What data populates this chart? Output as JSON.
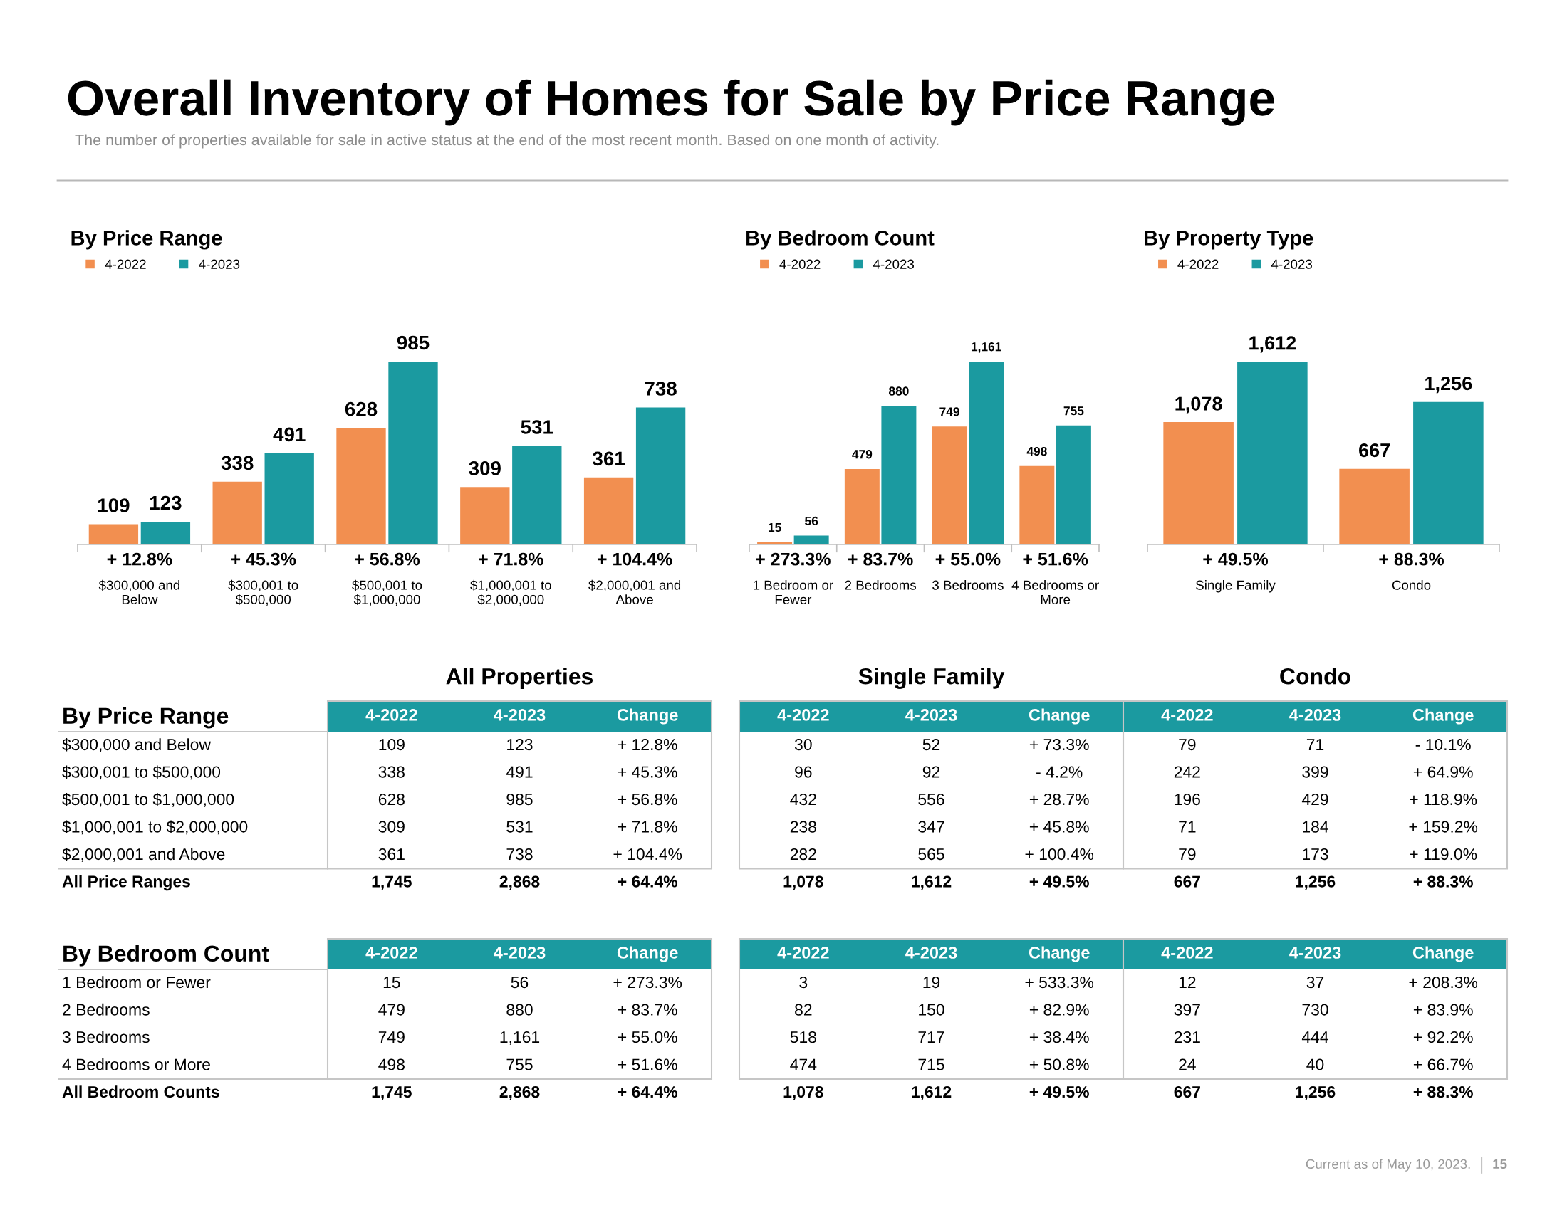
{
  "chart_data": [
    {
      "type": "other",
      "title": "Overall Inventory of Homes for Sale by Price Range",
      "subtitle": "The number of properties available for sale in active status at the end of the most recent month. Based on one month of activity.",
      "annotations": [
        "Current as of May 10, 2023.",
        "15"
      ]
    },
    {
      "type": "bar",
      "title": "By Price Range",
      "categories": [
        "$300,000 and\nBelow",
        "$300,001 to\n$500,000",
        "$500,001 to\n$1,000,000",
        "$1,000,001 to\n$2,000,000",
        "$2,000,001 and\nAbove"
      ],
      "series": [
        {
          "name": "4-2022",
          "color": "#f28f50",
          "values": [
            109,
            338,
            628,
            309,
            361
          ]
        },
        {
          "name": "4-2023",
          "color": "#1b9aa0",
          "values": [
            123,
            491,
            985,
            531,
            738
          ]
        }
      ],
      "data_labels": true,
      "legend": "top left",
      "tick_labels": "x",
      "annotations": [
        "+ 12.8%",
        "+ 45.3%",
        "+ 56.8%",
        "+ 71.8%",
        "+ 104.4%"
      ]
    },
    {
      "type": "bar",
      "title": "By Bedroom Count",
      "categories": [
        "1 Bedroom or\nFewer",
        "2 Bedrooms",
        "3 Bedrooms",
        "4 Bedrooms or\nMore"
      ],
      "series": [
        {
          "name": "4-2022",
          "color": "#f28f50",
          "values": [
            15,
            479,
            749,
            498
          ],
          "value_labels": [
            "15",
            "479",
            "749",
            "498"
          ]
        },
        {
          "name": "4-2023",
          "color": "#1b9aa0",
          "values": [
            56,
            880,
            1161,
            755
          ],
          "value_labels": [
            "56",
            "880",
            "1,161",
            "755"
          ]
        }
      ],
      "legend": "top left",
      "tick_labels": "x",
      "annotations": [
        "+ 273.3%",
        "+ 83.7%",
        "+ 55.0%",
        "+ 51.6%"
      ]
    },
    {
      "type": "bar",
      "title": "By Property Type",
      "categories": [
        "Single Family",
        "Condo"
      ],
      "series": [
        {
          "name": "4-2022",
          "color": "#f28f50",
          "values": [
            1078,
            667
          ],
          "value_labels": [
            "1,078",
            "667"
          ]
        },
        {
          "name": "4-2023",
          "color": "#1b9aa0",
          "values": [
            1612,
            1256
          ],
          "value_labels": [
            "1,612",
            "1,256"
          ]
        }
      ],
      "legend": "top left",
      "tick_labels": "x",
      "annotations": [
        "+ 49.5%",
        "+ 88.3%"
      ]
    },
    {
      "type": "other",
      "title": "By Price Range",
      "annotations": [
        "All Properties",
        "Single Family",
        "Condo"
      ],
      "categories": [
        "$300,000 and Below",
        "$300,001 to $500,000",
        "$500,001 to $1,000,000",
        "$1,000,001 to $2,000,000",
        "$2,000,001 and Above",
        "All Price Ranges"
      ],
      "series": [
        {
          "name": "4-2022",
          "values": [
            109,
            338,
            628,
            309,
            361,
            1745
          ],
          "value_labels": [
            "109",
            "338",
            "628",
            "309",
            "361",
            "1,745"
          ]
        },
        {
          "name": "4-2023",
          "values": [
            123,
            491,
            985,
            531,
            738,
            2868
          ],
          "value_labels": [
            "123",
            "491",
            "985",
            "531",
            "738",
            "2,868"
          ]
        },
        {
          "name": "Change",
          "values": [
            12.8,
            45.3,
            56.8,
            71.8,
            104.4,
            64.4
          ],
          "value_labels": [
            "+ 12.8%",
            "+ 45.3%",
            "+ 56.8%",
            "+ 71.8%",
            "+ 104.4%",
            "+ 64.4%"
          ]
        },
        {
          "name": "4-2022",
          "values": [
            30,
            96,
            432,
            238,
            282,
            1078
          ],
          "value_labels": [
            "30",
            "96",
            "432",
            "238",
            "282",
            "1,078"
          ]
        },
        {
          "name": "4-2023",
          "values": [
            52,
            92,
            556,
            347,
            565,
            1612
          ],
          "value_labels": [
            "52",
            "92",
            "556",
            "347",
            "565",
            "1,612"
          ]
        },
        {
          "name": "Change",
          "values": [
            73.3,
            -4.2,
            28.7,
            45.8,
            100.4,
            49.5
          ],
          "value_labels": [
            "+ 73.3%",
            "- 4.2%",
            "+ 28.7%",
            "+ 45.8%",
            "+ 100.4%",
            "+ 49.5%"
          ]
        },
        {
          "name": "4-2022",
          "values": [
            79,
            242,
            196,
            71,
            79,
            667
          ],
          "value_labels": [
            "79",
            "242",
            "196",
            "71",
            "79",
            "667"
          ]
        },
        {
          "name": "4-2023",
          "values": [
            71,
            399,
            429,
            184,
            173,
            1256
          ],
          "value_labels": [
            "71",
            "399",
            "429",
            "184",
            "173",
            "1,256"
          ]
        },
        {
          "name": "Change",
          "values": [
            -10.1,
            64.9,
            118.9,
            159.2,
            119.0,
            88.3
          ],
          "value_labels": [
            "- 10.1%",
            "+ 64.9%",
            "+ 118.9%",
            "+ 159.2%",
            "+ 119.0%",
            "+ 88.3%"
          ]
        }
      ]
    },
    {
      "type": "other",
      "title": "By Bedroom Count",
      "categories": [
        "1 Bedroom or Fewer",
        "2 Bedrooms",
        "3 Bedrooms",
        "4 Bedrooms or More",
        "All Bedroom Counts"
      ],
      "series": [
        {
          "name": "4-2022",
          "values": [
            15,
            479,
            749,
            498,
            1745
          ],
          "value_labels": [
            "15",
            "479",
            "749",
            "498",
            "1,745"
          ]
        },
        {
          "name": "4-2023",
          "values": [
            56,
            880,
            1161,
            755,
            2868
          ],
          "value_labels": [
            "56",
            "880",
            "1,161",
            "755",
            "2,868"
          ]
        },
        {
          "name": "Change",
          "values": [
            273.3,
            83.7,
            55.0,
            51.6,
            64.4
          ],
          "value_labels": [
            "+ 273.3%",
            "+ 83.7%",
            "+ 55.0%",
            "+ 51.6%",
            "+ 64.4%"
          ]
        },
        {
          "name": "4-2022",
          "values": [
            3,
            82,
            518,
            474,
            1078
          ],
          "value_labels": [
            "3",
            "82",
            "518",
            "474",
            "1,078"
          ]
        },
        {
          "name": "4-2023",
          "values": [
            19,
            150,
            717,
            715,
            1612
          ],
          "value_labels": [
            "19",
            "150",
            "717",
            "715",
            "1,612"
          ]
        },
        {
          "name": "Change",
          "values": [
            533.3,
            82.9,
            38.4,
            50.8,
            49.5
          ],
          "value_labels": [
            "+ 533.3%",
            "+ 82.9%",
            "+ 38.4%",
            "+ 50.8%",
            "+ 49.5%"
          ]
        },
        {
          "name": "4-2022",
          "values": [
            12,
            397,
            231,
            24,
            667
          ],
          "value_labels": [
            "12",
            "397",
            "231",
            "24",
            "667"
          ]
        },
        {
          "name": "4-2023",
          "values": [
            37,
            730,
            444,
            40,
            1256
          ],
          "value_labels": [
            "37",
            "730",
            "444",
            "40",
            "1,256"
          ]
        },
        {
          "name": "Change",
          "values": [
            208.3,
            83.9,
            92.2,
            66.7,
            88.3
          ],
          "value_labels": [
            "+ 208.3%",
            "+ 83.9%",
            "+ 92.2%",
            "+ 66.7%",
            "+ 88.3%"
          ]
        }
      ]
    }
  ]
}
